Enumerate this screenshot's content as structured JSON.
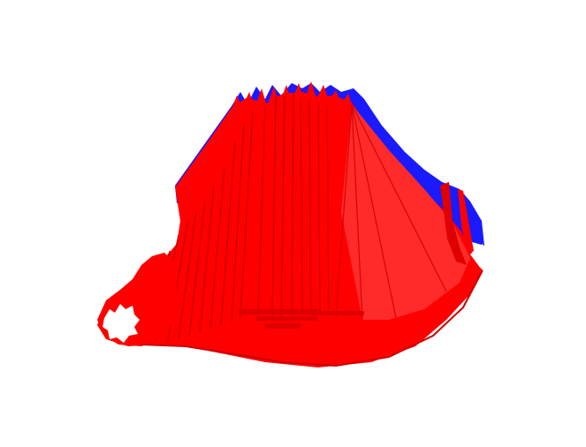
{
  "scene": {
    "subject": "3d-mesh-render",
    "colors": {
      "background": "#ffffff",
      "primary_surface": "#ff0000",
      "back_surface": "#1a1aff",
      "shade_dark": "#c40000",
      "shade_mid": "#e00000",
      "shade_light": "#ff2a2a"
    }
  }
}
